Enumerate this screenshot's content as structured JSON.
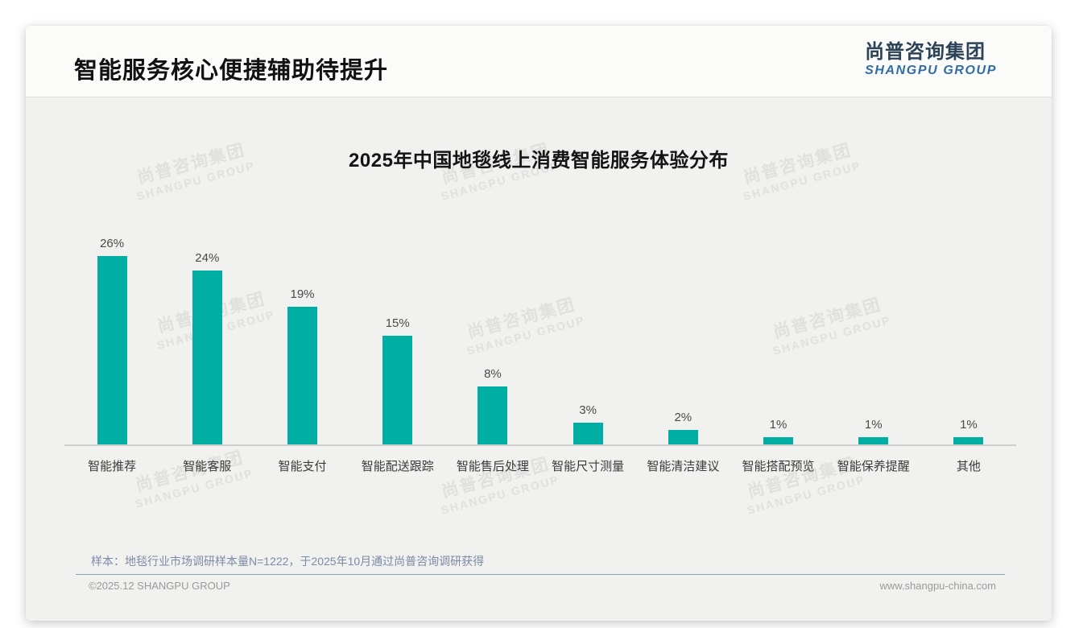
{
  "page": {
    "title": "智能服务核心便捷辅助待提升",
    "logo": {
      "cn": "尚普咨询集团",
      "en": "SHANGPU GROUP"
    },
    "watermark": {
      "cn": "尚普咨询集团",
      "en": "SHANGPU GROUP"
    },
    "footer": {
      "note": "样本：地毯行业市场调研样本量N=1222，于2025年10月通过尚普咨询调研获得",
      "copyright": "©2025.12 SHANGPU GROUP",
      "website": "www.shangpu-china.com"
    },
    "colors": {
      "bar": "#00AEA4",
      "logo_cn": "#2c4257",
      "logo_en": "#2f6da6",
      "note": "#7b8ba6"
    }
  },
  "chart_data": {
    "type": "bar",
    "title": "2025年中国地毯线上消费智能服务体验分布",
    "categories": [
      "智能推荐",
      "智能客服",
      "智能支付",
      "智能配送跟踪",
      "智能售后处理",
      "智能尺寸测量",
      "智能清洁建议",
      "智能搭配预览",
      "智能保养提醒",
      "其他"
    ],
    "values": [
      26,
      24,
      19,
      15,
      8,
      3,
      2,
      1,
      1,
      1
    ],
    "value_labels": [
      "26%",
      "24%",
      "19%",
      "15%",
      "8%",
      "3%",
      "2%",
      "1%",
      "1%",
      "1%"
    ],
    "unit": "%",
    "xlabel": "",
    "ylabel": "",
    "ylim": [
      0,
      30
    ],
    "grid": false,
    "legend": "none",
    "bar_color": "#00AEA4"
  }
}
